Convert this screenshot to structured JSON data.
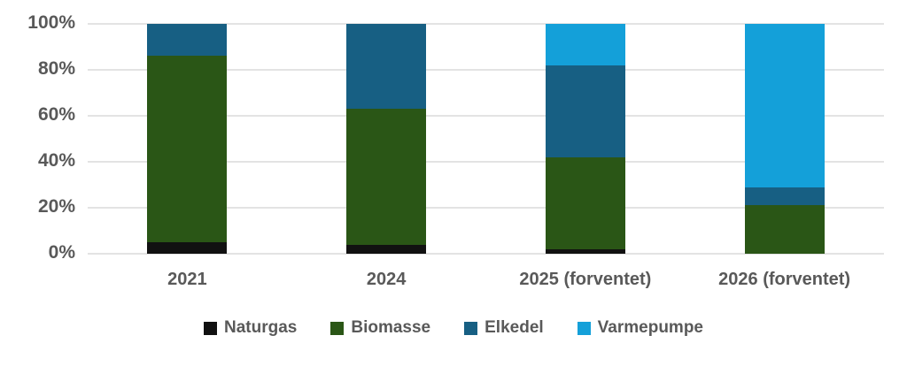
{
  "chart_data": {
    "type": "bar",
    "subtype": "stacked-100-percent",
    "title": "",
    "xlabel": "",
    "ylabel": "",
    "ylim": [
      0,
      100
    ],
    "grid": true,
    "legend_position": "bottom",
    "y_ticks": [
      "0%",
      "20%",
      "40%",
      "60%",
      "80%",
      "100%"
    ],
    "y_tick_values": [
      0,
      20,
      40,
      60,
      80,
      100
    ],
    "categories": [
      "2021",
      "2024",
      "2025 (forventet)",
      "2026 (forventet)"
    ],
    "series": [
      {
        "name": "Naturgas",
        "color": "#111111",
        "values": [
          5,
          4,
          2,
          0
        ]
      },
      {
        "name": "Biomasse",
        "color": "#2a5616",
        "values": [
          81,
          59,
          40,
          21
        ]
      },
      {
        "name": "Elkedel",
        "color": "#175f83",
        "values": [
          14,
          37,
          40,
          8
        ]
      },
      {
        "name": "Varmepumpe",
        "color": "#14a0d9",
        "values": [
          0,
          0,
          18,
          71
        ]
      }
    ]
  },
  "colors": {
    "gridline": "#e3e3e3",
    "axis_text": "#595959",
    "background": "#ffffff"
  }
}
